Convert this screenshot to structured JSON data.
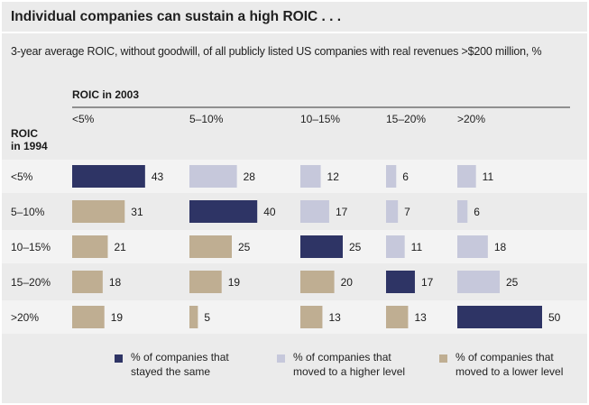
{
  "header": {
    "title": "Individual companies can sustain a high ROIC . . .",
    "subtitle": "3-year average ROIC, without goodwill, of all publicly listed US companies with real revenues >$200 million, %"
  },
  "chart_data": {
    "type": "bar",
    "column_axis_label": "ROIC in 2003",
    "row_axis_label": [
      "ROIC",
      "in 1994"
    ],
    "columns": [
      "<5%",
      "5–10%",
      "10–15%",
      "15–20%",
      ">20%"
    ],
    "rows": [
      "<5%",
      "5–10%",
      "10–15%",
      "15–20%",
      ">20%"
    ],
    "values": [
      [
        43,
        28,
        12,
        6,
        11
      ],
      [
        31,
        40,
        17,
        7,
        6
      ],
      [
        21,
        25,
        25,
        11,
        18
      ],
      [
        18,
        19,
        20,
        17,
        25
      ],
      [
        19,
        5,
        13,
        13,
        50
      ]
    ],
    "series": [
      {
        "name": "% of companies that stayed the same",
        "lines": [
          "% of companies that",
          "stayed the same"
        ],
        "color": "#2e3465"
      },
      {
        "name": "% of companies that moved to a higher level",
        "lines": [
          "% of companies that",
          "moved to a higher level"
        ],
        "color": "#c6c8db"
      },
      {
        "name": "% of companies that moved to a lower level",
        "lines": [
          "% of companies that",
          "moved to a lower level"
        ],
        "color": "#bfae92"
      }
    ]
  }
}
